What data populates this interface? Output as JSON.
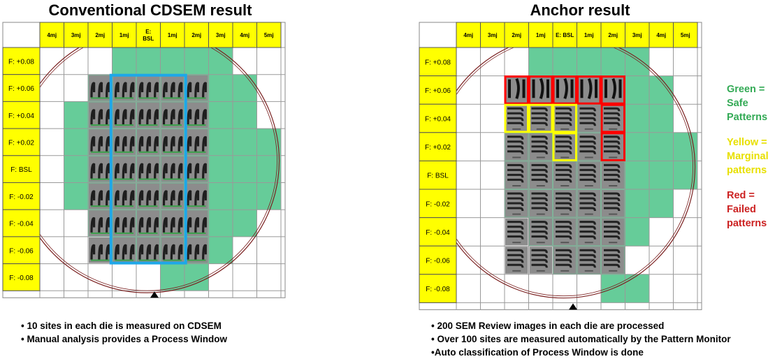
{
  "left": {
    "title": "Conventional CDSEM result",
    "columns": [
      "4mj",
      "3mj",
      "2mj",
      "1mj",
      "E:\nBSL",
      "1mj",
      "2mj",
      "3mj",
      "4mj",
      "5mj"
    ],
    "rows": [
      "F: +0.08",
      "F: +0.06",
      "F: +0.04",
      "F: +0.02",
      "F: BSL",
      "F: -0.02",
      "F: -0.04",
      "F: -0.06",
      "F: -0.08"
    ],
    "bullets": [
      "10 sites in each die is measured on CDSEM",
      "Manual analysis provides a Process Window"
    ]
  },
  "right": {
    "title": "Anchor result",
    "columns": [
      "4mj",
      "3mj",
      "2mj",
      "1mj",
      "E: BSL",
      "1mj",
      "2mj",
      "3mj",
      "4mj",
      "5mj"
    ],
    "rows": [
      "F: +0.08",
      "F: +0.06",
      "F: +0.04",
      "F: +0.02",
      "F: BSL",
      "F: -0.02",
      "F: -0.04",
      "F: -0.06",
      "F: -0.08"
    ],
    "bullets": [
      "200 SEM Review images  in each die are processed",
      "Over 100 sites are measured automatically by the Pattern Monitor",
      "Auto classification of Process Window is done"
    ],
    "legend": {
      "green": "Green =\nSafe\nPatterns",
      "yellow": "Yellow =\nMarginal\npatterns",
      "red": "Red =\nFailed\npatterns"
    }
  },
  "colors": {
    "safe": "#66cc99",
    "marginal": "#ffff00",
    "failed": "#ff0000",
    "highlight": "#1ea7e8",
    "header": "#ffff00",
    "legend_green": "#33aa55",
    "legend_yellow": "#e8e000",
    "legend_red": "#cc2222"
  }
}
